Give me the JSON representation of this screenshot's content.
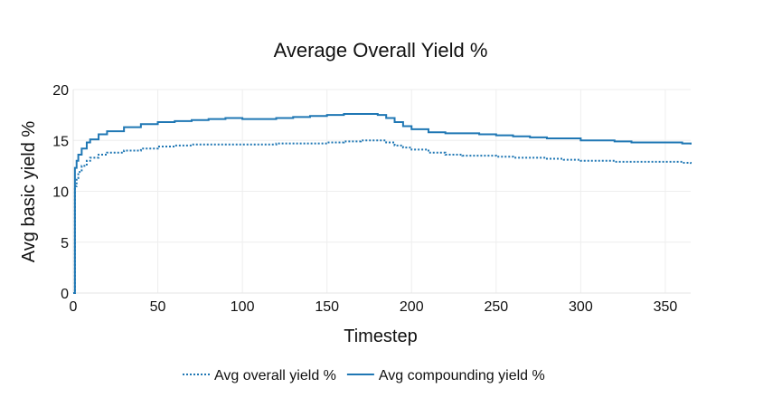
{
  "chart_data": {
    "type": "line",
    "title": "Average Overall Yield %",
    "xlabel": "Timestep",
    "ylabel": "Avg basic yield %",
    "xlim": [
      0,
      365
    ],
    "ylim": [
      0,
      20
    ],
    "xticks": [
      0,
      50,
      100,
      150,
      200,
      250,
      300,
      350
    ],
    "yticks": [
      0,
      5,
      10,
      15,
      20
    ],
    "grid": true,
    "legend_position": "bottom",
    "line_shape": "step",
    "series": [
      {
        "name": "Avg overall yield %",
        "color": "#1f77b4",
        "dash": "dotted",
        "x": [
          0,
          1,
          2,
          3,
          5,
          8,
          10,
          15,
          20,
          30,
          40,
          50,
          60,
          70,
          80,
          90,
          100,
          110,
          120,
          130,
          140,
          150,
          160,
          170,
          175,
          180,
          185,
          190,
          195,
          200,
          210,
          220,
          230,
          240,
          250,
          260,
          270,
          280,
          290,
          300,
          310,
          320,
          330,
          340,
          350,
          360,
          365
        ],
        "y": [
          0,
          10.5,
          11.3,
          11.9,
          12.5,
          13.0,
          13.3,
          13.6,
          13.8,
          14.0,
          14.2,
          14.4,
          14.5,
          14.6,
          14.6,
          14.6,
          14.6,
          14.6,
          14.7,
          14.7,
          14.7,
          14.8,
          14.9,
          15.0,
          15.0,
          15.0,
          14.8,
          14.5,
          14.3,
          14.1,
          13.8,
          13.6,
          13.5,
          13.5,
          13.4,
          13.3,
          13.3,
          13.2,
          13.1,
          13.0,
          13.0,
          12.9,
          12.9,
          12.9,
          12.9,
          12.8,
          12.7
        ]
      },
      {
        "name": "Avg compounding yield %",
        "color": "#1f77b4",
        "dash": "solid",
        "x": [
          0,
          1,
          2,
          3,
          5,
          8,
          10,
          15,
          20,
          30,
          40,
          50,
          60,
          70,
          80,
          90,
          100,
          110,
          120,
          130,
          140,
          150,
          160,
          170,
          175,
          180,
          185,
          190,
          195,
          200,
          210,
          220,
          230,
          240,
          250,
          260,
          270,
          280,
          290,
          300,
          310,
          320,
          330,
          340,
          350,
          360,
          365
        ],
        "y": [
          0,
          12.3,
          13.0,
          13.6,
          14.2,
          14.8,
          15.1,
          15.6,
          15.9,
          16.3,
          16.6,
          16.8,
          16.9,
          17.0,
          17.1,
          17.2,
          17.1,
          17.1,
          17.2,
          17.3,
          17.4,
          17.5,
          17.6,
          17.6,
          17.6,
          17.5,
          17.2,
          16.8,
          16.4,
          16.1,
          15.8,
          15.7,
          15.7,
          15.6,
          15.5,
          15.4,
          15.3,
          15.2,
          15.2,
          15.0,
          15.0,
          14.9,
          14.8,
          14.8,
          14.8,
          14.7,
          14.6
        ]
      }
    ]
  }
}
